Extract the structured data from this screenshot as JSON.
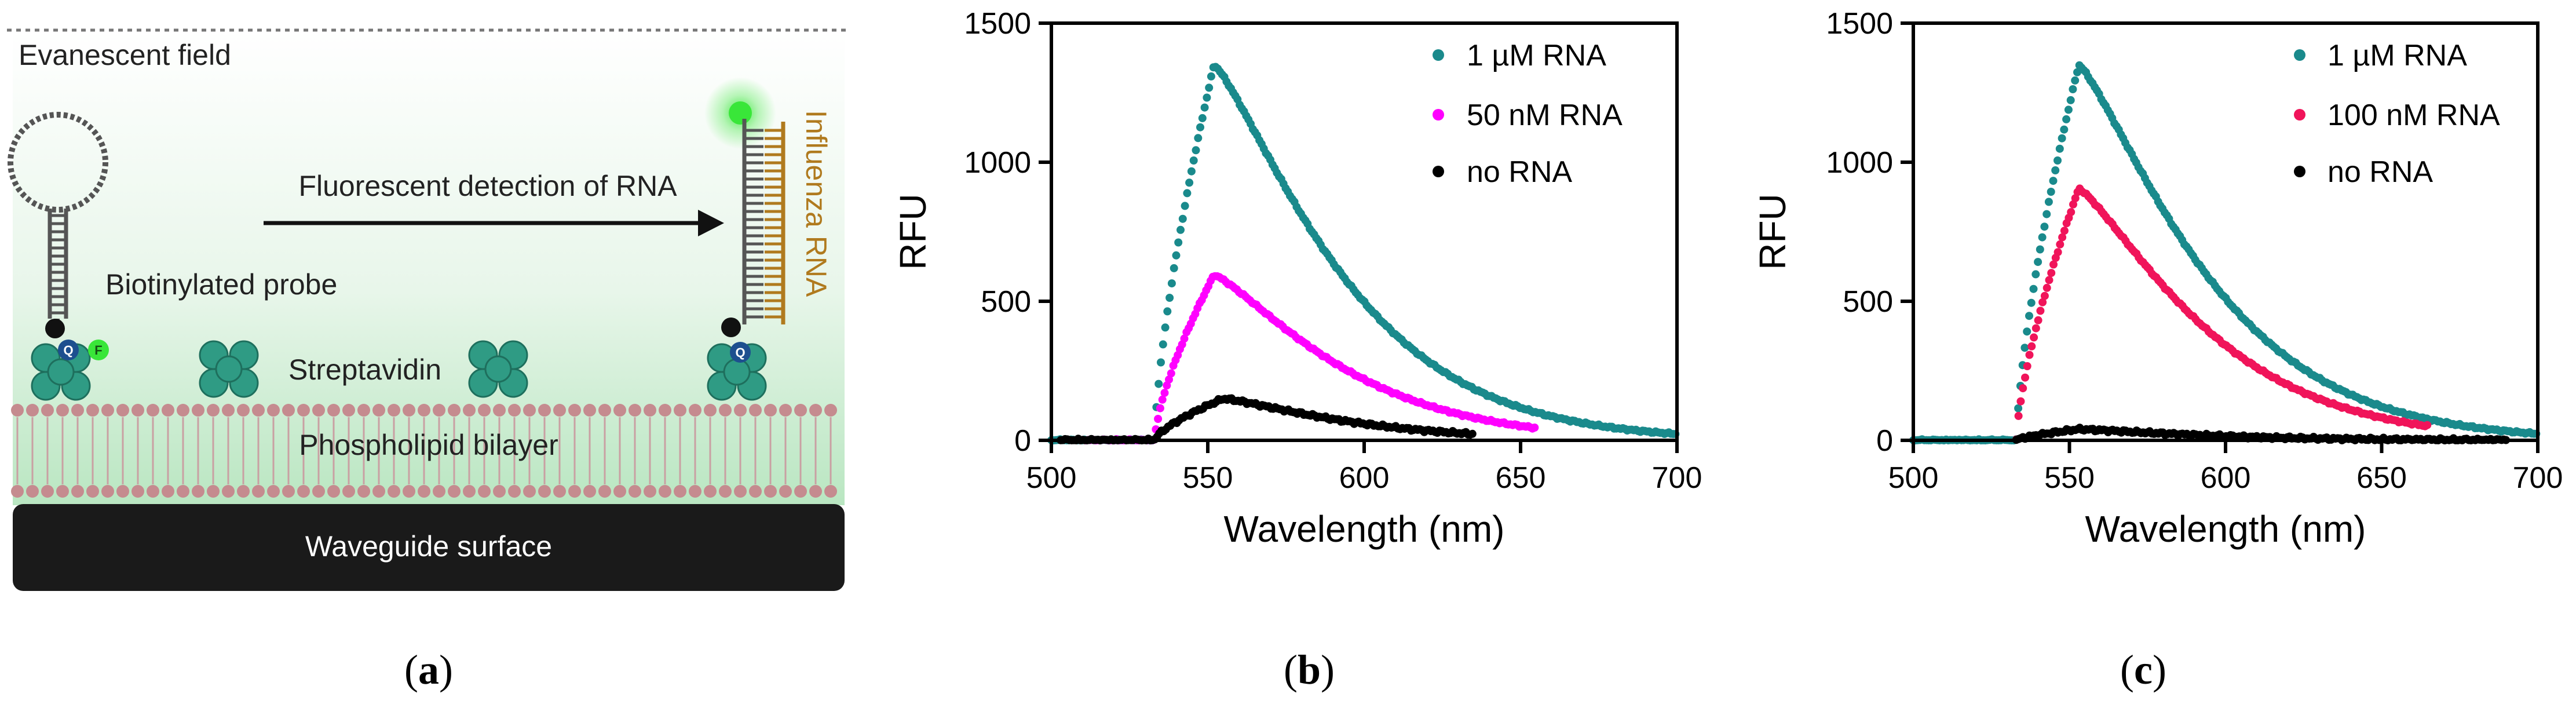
{
  "panel_a": {
    "caption_open": "(",
    "caption_letter": "a",
    "caption_close": ")",
    "evanescent_label": "Evanescent field",
    "arrow_label": "Fluorescent detection of RNA",
    "probe_label": "Biotinylated probe",
    "streptavidin_label": "Streptavidin",
    "bilayer_label": "Phospholipid bilayer",
    "waveguide_label": "Waveguide surface",
    "influenza_label": "Influenza RNA",
    "quencher_letter": "Q",
    "fluor_letter": "F",
    "colors": {
      "teal": "#2f9b84",
      "field": "#c8ecd0",
      "bilayer": "#c58b8f",
      "waveguide": "#1a1a1a",
      "fluor": "#39e639",
      "rna": "#b07a1e"
    }
  },
  "chart_data": [
    {
      "type": "scatter",
      "panel": "b",
      "caption_open": "(",
      "caption_letter": "b",
      "caption_close": ")",
      "title": "",
      "xlabel": "Wavelength (nm)",
      "ylabel": "RFU",
      "xlim": [
        500,
        700
      ],
      "ylim": [
        0,
        1500
      ],
      "xticks": [
        "500",
        "550",
        "600",
        "650",
        "700"
      ],
      "yticks": [
        "0",
        "500",
        "1000",
        "1500"
      ],
      "legend_position": "top-right",
      "series": [
        {
          "name": "1 µM RNA",
          "color": "#1a8a8c",
          "peak_x": 552,
          "peak_y": 1350,
          "onset_x": 533,
          "start_x": 500,
          "end_x": 700
        },
        {
          "name": "50 nM RNA",
          "color": "#ff00ff",
          "peak_x": 552,
          "peak_y": 595,
          "onset_x": 533,
          "start_x": 511,
          "end_x": 655
        },
        {
          "name": "no RNA",
          "color": "#000000",
          "peak_x": 555,
          "peak_y": 150,
          "onset_x": 533,
          "start_x": 503,
          "end_x": 635
        }
      ]
    },
    {
      "type": "scatter",
      "panel": "c",
      "caption_open": "(",
      "caption_letter": "c",
      "caption_close": ")",
      "title": "",
      "xlabel": "Wavelength (nm)",
      "ylabel": "RFU",
      "xlim": [
        500,
        700
      ],
      "ylim": [
        0,
        1500
      ],
      "xticks": [
        "500",
        "550",
        "600",
        "650",
        "700"
      ],
      "yticks": [
        "0",
        "500",
        "1000",
        "1500"
      ],
      "legend_position": "top-right",
      "series": [
        {
          "name": "1 µM RNA",
          "color": "#1a8a8c",
          "peak_x": 553,
          "peak_y": 1350,
          "onset_x": 533,
          "start_x": 500,
          "end_x": 700
        },
        {
          "name": "100 nM RNA",
          "color": "#f0145a",
          "peak_x": 553,
          "peak_y": 905,
          "onset_x": 533,
          "start_x": 533,
          "end_x": 665
        },
        {
          "name": "no RNA",
          "color": "#000000",
          "peak_x": 553,
          "peak_y": 40,
          "onset_x": 533,
          "start_x": 533,
          "end_x": 690
        }
      ]
    }
  ]
}
